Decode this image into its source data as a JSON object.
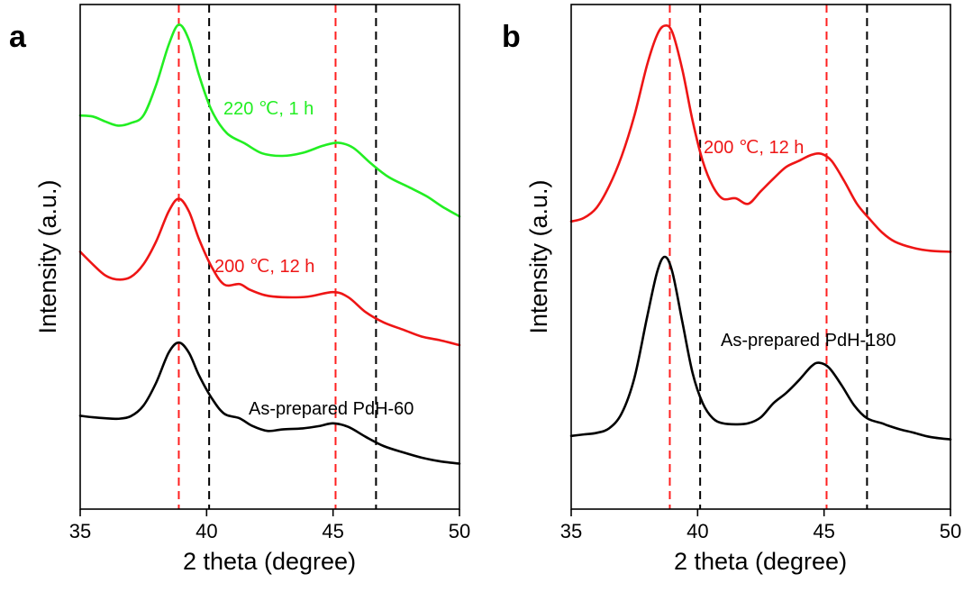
{
  "chart_data": [
    {
      "panel": "a",
      "type": "line",
      "xlabel": "2 theta (degree)",
      "ylabel": "Intensity (a.u.)",
      "xlim": [
        35,
        50
      ],
      "ylim": [
        0,
        100
      ],
      "xticks": [
        35,
        40,
        45,
        50
      ],
      "reference_lines": [
        {
          "x": 38.9,
          "color": "#ff2020"
        },
        {
          "x": 40.1,
          "color": "#000000"
        },
        {
          "x": 45.1,
          "color": "#ff2020"
        },
        {
          "x": 46.7,
          "color": "#000000"
        }
      ],
      "series": [
        {
          "name": "220 ℃, 1 h",
          "color": "#22ee22",
          "points": [
            [
              35,
              78
            ],
            [
              35.5,
              77.8
            ],
            [
              36,
              76.8
            ],
            [
              36.5,
              76
            ],
            [
              37,
              76.5
            ],
            [
              37.5,
              78
            ],
            [
              38,
              84
            ],
            [
              38.5,
              92
            ],
            [
              38.9,
              96
            ],
            [
              39.3,
              93
            ],
            [
              39.7,
              86
            ],
            [
              40.2,
              79
            ],
            [
              40.8,
              74.5
            ],
            [
              41.5,
              72.5
            ],
            [
              42.2,
              70.5
            ],
            [
              43,
              70
            ],
            [
              43.8,
              70.6
            ],
            [
              44.6,
              72
            ],
            [
              45.2,
              72.6
            ],
            [
              45.8,
              71.6
            ],
            [
              46.5,
              68.5
            ],
            [
              47.2,
              65.8
            ],
            [
              48,
              63.8
            ],
            [
              48.7,
              62
            ],
            [
              49.3,
              60
            ],
            [
              50,
              58
            ]
          ]
        },
        {
          "name": "200 ℃, 12 h",
          "color": "#ee1515",
          "points": [
            [
              35,
              51
            ],
            [
              35.5,
              48.5
            ],
            [
              36,
              46.3
            ],
            [
              36.5,
              45.5
            ],
            [
              37,
              46
            ],
            [
              37.5,
              48.5
            ],
            [
              38,
              53
            ],
            [
              38.5,
              59
            ],
            [
              38.9,
              61.5
            ],
            [
              39.3,
              59
            ],
            [
              39.7,
              53.5
            ],
            [
              40.2,
              48
            ],
            [
              40.7,
              44.5
            ],
            [
              41.3,
              44.6
            ],
            [
              41.7,
              43.5
            ],
            [
              42.3,
              42.4
            ],
            [
              43,
              42
            ],
            [
              44,
              42.1
            ],
            [
              45,
              43
            ],
            [
              45.6,
              42
            ],
            [
              46.3,
              39
            ],
            [
              47,
              37
            ],
            [
              47.8,
              35.5
            ],
            [
              48.5,
              34.2
            ],
            [
              49.2,
              33.5
            ],
            [
              50,
              32.5
            ]
          ]
        },
        {
          "name": "As-prepared PdH-60",
          "color": "#000000",
          "points": [
            [
              35,
              18.5
            ],
            [
              35.5,
              18.2
            ],
            [
              36,
              18
            ],
            [
              36.5,
              17.9
            ],
            [
              37,
              18.4
            ],
            [
              37.5,
              20.5
            ],
            [
              38,
              25
            ],
            [
              38.5,
              31
            ],
            [
              38.9,
              33
            ],
            [
              39.3,
              31
            ],
            [
              39.7,
              26.5
            ],
            [
              40.2,
              22
            ],
            [
              40.7,
              18.9
            ],
            [
              41.3,
              18
            ],
            [
              41.8,
              16.5
            ],
            [
              42.4,
              15.5
            ],
            [
              43,
              15.8
            ],
            [
              43.8,
              16
            ],
            [
              44.5,
              16.5
            ],
            [
              45,
              17
            ],
            [
              45.6,
              16.3
            ],
            [
              46.3,
              14.3
            ],
            [
              47,
              12.5
            ],
            [
              47.8,
              11.2
            ],
            [
              48.5,
              10.2
            ],
            [
              49.2,
              9.5
            ],
            [
              50,
              9
            ]
          ]
        }
      ],
      "annotations": [
        {
          "text": "220 ℃, 1 h",
          "color": "#22ee22"
        },
        {
          "text": "200 ℃, 12 h",
          "color": "#ee1515"
        },
        {
          "text": "As-prepared PdH-60",
          "color": "#000000"
        }
      ]
    },
    {
      "panel": "b",
      "type": "line",
      "xlabel": "2 theta (degree)",
      "ylabel": "Intensity (a.u.)",
      "xlim": [
        35,
        50
      ],
      "ylim": [
        0,
        100
      ],
      "xticks": [
        35,
        40,
        45,
        50
      ],
      "reference_lines": [
        {
          "x": 38.9,
          "color": "#ff2020"
        },
        {
          "x": 40.1,
          "color": "#000000"
        },
        {
          "x": 45.1,
          "color": "#ff2020"
        },
        {
          "x": 46.7,
          "color": "#000000"
        }
      ],
      "series": [
        {
          "name": "200 ℃, 12 h",
          "color": "#ee1515",
          "points": [
            [
              35,
              57
            ],
            [
              35.5,
              57.7
            ],
            [
              36,
              59.7
            ],
            [
              36.5,
              64
            ],
            [
              37,
              70
            ],
            [
              37.5,
              78
            ],
            [
              38,
              88
            ],
            [
              38.4,
              94
            ],
            [
              38.7,
              95.8
            ],
            [
              39,
              94.5
            ],
            [
              39.4,
              87
            ],
            [
              39.8,
              77
            ],
            [
              40.2,
              69
            ],
            [
              40.6,
              64
            ],
            [
              41,
              61.5
            ],
            [
              41.5,
              61.6
            ],
            [
              42,
              60.5
            ],
            [
              42.5,
              63
            ],
            [
              43,
              65.5
            ],
            [
              43.5,
              67.8
            ],
            [
              44,
              69
            ],
            [
              44.5,
              70.2
            ],
            [
              44.9,
              70.4
            ],
            [
              45.3,
              69
            ],
            [
              45.8,
              65
            ],
            [
              46.3,
              60.5
            ],
            [
              46.8,
              57.5
            ],
            [
              47.3,
              54.8
            ],
            [
              47.8,
              53
            ],
            [
              48.5,
              51.8
            ],
            [
              49.2,
              51.2
            ],
            [
              50,
              51
            ]
          ]
        },
        {
          "name": "As-prepared PdH-180",
          "color": "#000000",
          "points": [
            [
              35,
              14.5
            ],
            [
              35.5,
              14.8
            ],
            [
              36,
              15.1
            ],
            [
              36.5,
              16
            ],
            [
              37,
              19
            ],
            [
              37.5,
              26
            ],
            [
              38,
              38
            ],
            [
              38.4,
              47
            ],
            [
              38.7,
              50
            ],
            [
              39,
              47
            ],
            [
              39.4,
              37
            ],
            [
              39.8,
              27
            ],
            [
              40.2,
              21
            ],
            [
              40.6,
              18
            ],
            [
              41,
              17
            ],
            [
              41.5,
              16.8
            ],
            [
              42,
              17
            ],
            [
              42.5,
              18.2
            ],
            [
              43,
              21
            ],
            [
              43.5,
              23
            ],
            [
              44,
              25.5
            ],
            [
              44.5,
              28.3
            ],
            [
              44.8,
              29
            ],
            [
              45.2,
              28
            ],
            [
              45.7,
              24.5
            ],
            [
              46.2,
              20.5
            ],
            [
              46.7,
              18
            ],
            [
              47.3,
              17
            ],
            [
              47.5,
              16.6
            ],
            [
              48,
              15.8
            ],
            [
              48.5,
              15.2
            ],
            [
              49.2,
              14.3
            ],
            [
              50,
              13.8
            ]
          ]
        }
      ],
      "annotations": [
        {
          "text": "200 ℃, 12 h",
          "color": "#ee1515"
        },
        {
          "text": "As-prepared PdH-180",
          "color": "#000000"
        }
      ]
    }
  ]
}
